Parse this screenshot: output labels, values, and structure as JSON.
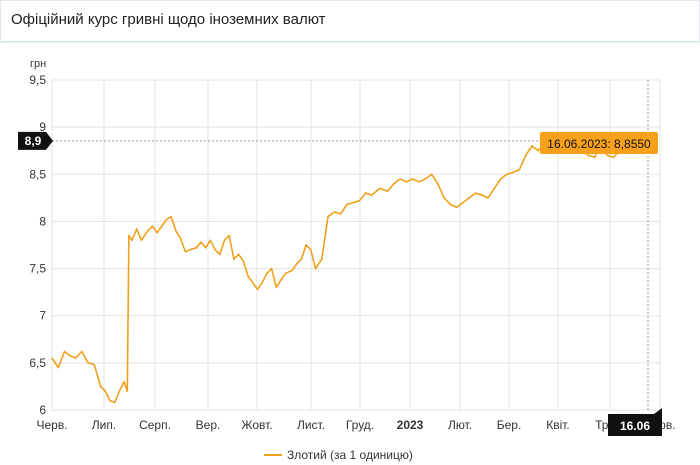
{
  "header": {
    "title": "Офіційний курс гривні щодо іноземних валют"
  },
  "chart_data": {
    "type": "line",
    "title": "Офіційний курс гривні щодо іноземних валют",
    "ylabel": "грн",
    "ylim": [
      6,
      9.5
    ],
    "yticks": [
      6,
      6.5,
      7,
      7.5,
      8,
      8.5,
      9,
      9.5
    ],
    "ytick_labels": [
      "6",
      "6,5",
      "7",
      "7,5",
      "8",
      "8,5",
      "9",
      "9,5"
    ],
    "xlabels": [
      "Черв.",
      "Лип.",
      "Серп.",
      "Вер.",
      "Жовт.",
      "Лист.",
      "Груд.",
      "2023",
      "Лют.",
      "Бер.",
      "Квіт.",
      "Трав.",
      "Черв."
    ],
    "grid": true,
    "legend_position": "bottom",
    "series": [
      {
        "name": "Злотий (за 1 одиницю)",
        "color": "#f0a01c",
        "x": [
          "2022-06-01",
          "2022-06-05",
          "2022-06-09",
          "2022-06-12",
          "2022-06-16",
          "2022-06-20",
          "2022-06-24",
          "2022-06-28",
          "2022-07-02",
          "2022-07-05",
          "2022-07-08",
          "2022-07-11",
          "2022-07-14",
          "2022-07-17",
          "2022-07-19",
          "2022-07-20",
          "2022-07-22",
          "2022-07-25",
          "2022-07-28",
          "2022-08-01",
          "2022-08-04",
          "2022-08-07",
          "2022-08-10",
          "2022-08-13",
          "2022-08-16",
          "2022-08-19",
          "2022-08-22",
          "2022-08-25",
          "2022-08-28",
          "2022-09-01",
          "2022-09-04",
          "2022-09-07",
          "2022-09-10",
          "2022-09-13",
          "2022-09-16",
          "2022-09-19",
          "2022-09-22",
          "2022-09-25",
          "2022-09-28",
          "2022-10-01",
          "2022-10-04",
          "2022-10-07",
          "2022-10-10",
          "2022-10-13",
          "2022-10-16",
          "2022-10-19",
          "2022-10-22",
          "2022-10-25",
          "2022-10-28",
          "2022-11-01",
          "2022-11-04",
          "2022-11-07",
          "2022-11-10",
          "2022-11-13",
          "2022-11-16",
          "2022-11-20",
          "2022-11-24",
          "2022-11-28",
          "2022-12-02",
          "2022-12-06",
          "2022-12-10",
          "2022-12-14",
          "2022-12-18",
          "2022-12-22",
          "2022-12-27",
          "2023-01-01",
          "2023-01-05",
          "2023-01-09",
          "2023-01-13",
          "2023-01-17",
          "2023-01-21",
          "2023-01-25",
          "2023-01-29",
          "2023-02-02",
          "2023-02-06",
          "2023-02-10",
          "2023-02-14",
          "2023-02-18",
          "2023-02-22",
          "2023-02-26",
          "2023-03-02",
          "2023-03-06",
          "2023-03-10",
          "2023-03-14",
          "2023-03-18",
          "2023-03-22",
          "2023-03-26",
          "2023-03-30",
          "2023-04-03",
          "2023-04-07",
          "2023-04-11",
          "2023-04-15",
          "2023-04-19",
          "2023-04-23",
          "2023-04-27",
          "2023-05-01",
          "2023-05-05",
          "2023-05-09",
          "2023-05-13",
          "2023-05-17",
          "2023-05-21",
          "2023-05-25",
          "2023-05-29",
          "2023-06-02",
          "2023-06-06",
          "2023-06-10",
          "2023-06-14",
          "2023-06-16"
        ],
        "values": [
          6.55,
          6.45,
          6.62,
          6.58,
          6.55,
          6.62,
          6.5,
          6.48,
          6.25,
          6.2,
          6.1,
          6.08,
          6.2,
          6.3,
          6.2,
          7.85,
          7.8,
          7.92,
          7.8,
          7.9,
          7.95,
          7.88,
          7.95,
          8.02,
          8.05,
          7.9,
          7.82,
          7.68,
          7.7,
          7.72,
          7.78,
          7.72,
          7.8,
          7.7,
          7.65,
          7.8,
          7.85,
          7.6,
          7.65,
          7.58,
          7.42,
          7.35,
          7.28,
          7.35,
          7.45,
          7.5,
          7.3,
          7.38,
          7.45,
          7.48,
          7.55,
          7.6,
          7.75,
          7.7,
          7.5,
          7.6,
          8.05,
          8.1,
          8.08,
          8.18,
          8.2,
          8.22,
          8.3,
          8.28,
          8.35,
          8.32,
          8.4,
          8.45,
          8.42,
          8.45,
          8.42,
          8.45,
          8.5,
          8.4,
          8.25,
          8.18,
          8.15,
          8.2,
          8.25,
          8.3,
          8.28,
          8.25,
          8.35,
          8.45,
          8.5,
          8.52,
          8.55,
          8.7,
          8.8,
          8.75,
          8.82,
          8.8,
          8.85,
          8.9,
          8.85,
          8.82,
          8.75,
          8.7,
          8.68,
          8.85,
          8.7,
          8.68,
          8.75,
          8.82,
          8.86,
          8.8,
          8.86,
          8.855
        ]
      }
    ],
    "crosshair": {
      "y_label": "8,9",
      "x_label": "16.06",
      "tooltip": "16.06.2023: 8,8550"
    }
  }
}
